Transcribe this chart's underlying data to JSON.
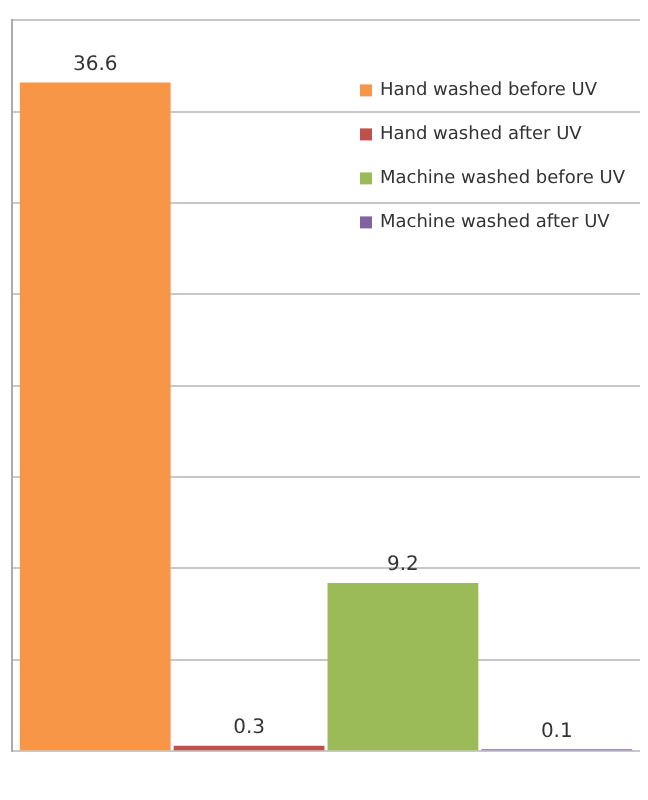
{
  "chart_data": {
    "type": "bar",
    "categories": [
      null
    ],
    "series": [
      {
        "name": "Hand washed before UV",
        "color": "#f79646",
        "values": [
          36.6
        ]
      },
      {
        "name": "Hand washed after UV",
        "color": "#c0504d",
        "values": [
          0.3
        ]
      },
      {
        "name": "Machine washed before UV",
        "color": "#9bbb59",
        "values": [
          9.2
        ]
      },
      {
        "name": "Machine washed after UV",
        "color": "#8064a2",
        "values": [
          0.1
        ]
      }
    ],
    "ylim": [
      0,
      40
    ],
    "yticks": [
      {
        "value": 0,
        "label": null
      },
      {
        "value": 5,
        "label": null
      },
      {
        "value": 10,
        "label": null
      },
      {
        "value": 15,
        "label": null
      },
      {
        "value": 20,
        "label": null
      },
      {
        "value": 25,
        "label": null
      },
      {
        "value": 30,
        "label": null
      },
      {
        "value": 35,
        "label": null
      },
      {
        "value": 40,
        "label": null
      }
    ],
    "grid": "y",
    "data_labels": true,
    "legend": "top right"
  }
}
